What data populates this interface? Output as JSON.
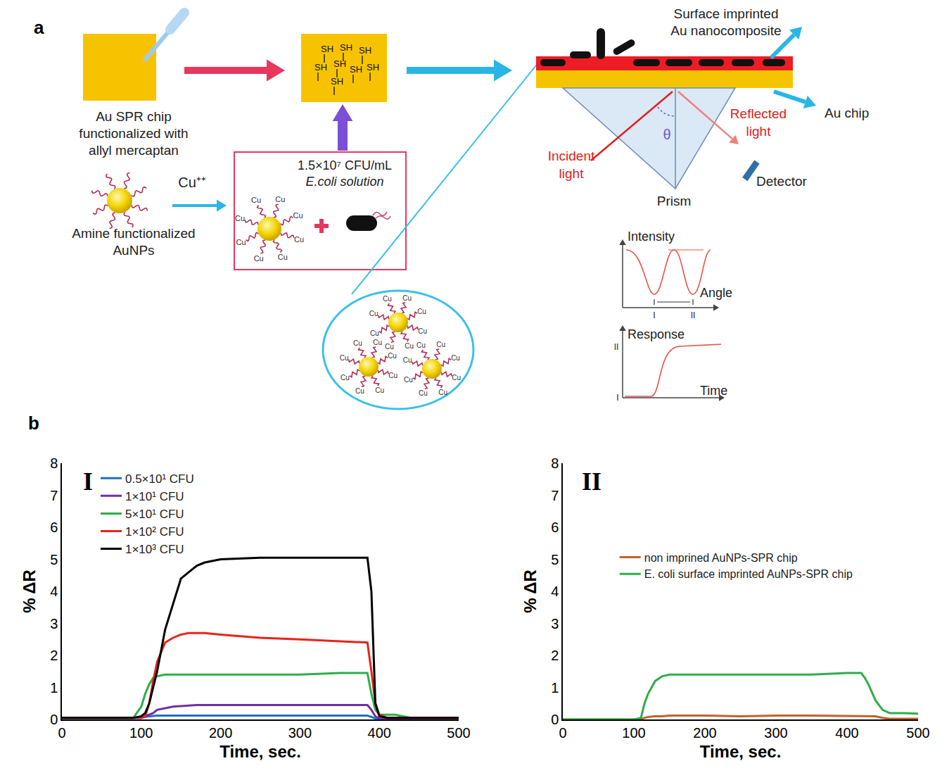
{
  "panel_a": {
    "label": "a",
    "chip_label": [
      "Au SPR chip",
      "functionalized with",
      "allyl mercaptan"
    ],
    "thiol_group": "SH",
    "nanoparticle_label": [
      "Amine functionalized",
      "AuNPs"
    ],
    "copper_ion": "Cu⁺⁺",
    "copper": "Cu",
    "bacteria_solution": [
      "1.5×10⁷ CFU/mL",
      "E.coli solution"
    ],
    "sensor_labels": {
      "nanocomposite": [
        "Surface imprinted",
        "Au nanocomposite"
      ],
      "chip": "Au chip",
      "incident": [
        "Incident",
        "light"
      ],
      "reflected": [
        "Reflected",
        "light"
      ],
      "detector": "Detector",
      "prism": "Prism",
      "angle_symbol": "θ"
    },
    "inset_spectrum": {
      "y_label": "Intensity",
      "x_label": "Angle",
      "markers": [
        "I",
        "II"
      ]
    },
    "inset_sensorgram": {
      "y_label": "Response",
      "x_label": "Time",
      "markers": [
        "I",
        "II"
      ]
    }
  },
  "panel_b_label": "b",
  "chart_data": [
    {
      "type": "line",
      "annotations": [
        "I"
      ],
      "x_label": "Time, sec.",
      "y_label": "% ΔR",
      "xlim": [
        0,
        500
      ],
      "xticks": [
        0,
        100,
        200,
        300,
        400,
        500
      ],
      "ylim": [
        0,
        8
      ],
      "yticks": [
        0,
        1,
        2,
        3,
        4,
        5,
        6,
        7,
        8
      ],
      "grid": false,
      "legend": "upper left",
      "x": [
        0,
        50,
        90,
        100,
        105,
        110,
        115,
        120,
        130,
        140,
        150,
        160,
        170,
        180,
        200,
        250,
        300,
        350,
        385,
        390,
        395,
        400,
        410,
        420,
        440,
        460,
        500
      ],
      "series": [
        {
          "name": "0.5×10¹ CFU",
          "color": "#1f6fc5",
          "values": [
            0.05,
            0.05,
            0.05,
            0.05,
            0.08,
            0.1,
            0.11,
            0.12,
            0.12,
            0.12,
            0.12,
            0.12,
            0.12,
            0.12,
            0.12,
            0.12,
            0.12,
            0.12,
            0.12,
            0.08,
            0.03,
            0.02,
            0.02,
            0.02,
            0.02,
            0.02,
            0.02
          ]
        },
        {
          "name": "1×10¹ CFU",
          "color": "#7030a0",
          "values": [
            0.05,
            0.05,
            0.05,
            0.05,
            0.1,
            0.15,
            0.2,
            0.3,
            0.35,
            0.4,
            0.42,
            0.44,
            0.45,
            0.45,
            0.45,
            0.45,
            0.44,
            0.44,
            0.45,
            0.3,
            0.1,
            0.02,
            0.02,
            0.02,
            0.02,
            0.02,
            0.02
          ]
        },
        {
          "name": "5×10¹ CFU",
          "color": "#2eae4a",
          "values": [
            0.05,
            0.05,
            0.05,
            0.4,
            0.8,
            1.1,
            1.3,
            1.35,
            1.4,
            1.4,
            1.4,
            1.4,
            1.4,
            1.4,
            1.4,
            1.4,
            1.4,
            1.45,
            1.45,
            0.8,
            0.3,
            0.15,
            0.15,
            0.15,
            0.05,
            0.05,
            0.05
          ]
        },
        {
          "name": "1×10² CFU",
          "color": "#e8231c",
          "values": [
            0.05,
            0.05,
            0.05,
            0.05,
            0.1,
            0.5,
            1.2,
            1.8,
            2.4,
            2.55,
            2.65,
            2.7,
            2.7,
            2.7,
            2.65,
            2.55,
            2.5,
            2.45,
            2.4,
            1.5,
            0.5,
            0.15,
            0.05,
            0.05,
            0.05,
            0.05,
            0.05
          ]
        },
        {
          "name": "1×10³ CFU",
          "color": "#000000",
          "values": [
            0.05,
            0.05,
            0.05,
            0.1,
            0.2,
            0.5,
            1.0,
            1.5,
            2.8,
            3.6,
            4.4,
            4.6,
            4.8,
            4.9,
            5.0,
            5.05,
            5.05,
            5.05,
            5.05,
            4.0,
            0.5,
            0.1,
            0.05,
            0.05,
            0.05,
            0.05,
            0.05
          ]
        }
      ]
    },
    {
      "type": "line",
      "annotations": [
        "II"
      ],
      "x_label": "Time, sec.",
      "y_label": "% ΔR",
      "xlim": [
        0,
        500
      ],
      "xticks": [
        0,
        100,
        200,
        300,
        400,
        500
      ],
      "ylim": [
        0,
        8
      ],
      "yticks": [
        0,
        1,
        2,
        3,
        4,
        5,
        6,
        7,
        8
      ],
      "grid": false,
      "legend": "center left",
      "x": [
        0,
        50,
        100,
        110,
        115,
        120,
        130,
        140,
        150,
        200,
        250,
        300,
        350,
        400,
        420,
        425,
        430,
        440,
        450,
        460,
        480,
        500
      ],
      "series": [
        {
          "name": "non imprined AuNPs-SPR chip",
          "color": "#c0622b",
          "values": [
            0,
            0,
            0,
            0.02,
            0.05,
            0.08,
            0.1,
            0.1,
            0.12,
            0.12,
            0.1,
            0.12,
            0.12,
            0.1,
            0.1,
            0.1,
            0.1,
            0.1,
            0.05,
            0.02,
            0.02,
            0.02
          ]
        },
        {
          "name": "E. coli surface imprinted AuNPs-SPR chip",
          "color": "#2eae4a",
          "values": [
            0,
            0,
            0,
            0.05,
            0.5,
            0.8,
            1.2,
            1.35,
            1.4,
            1.4,
            1.4,
            1.4,
            1.4,
            1.45,
            1.45,
            1.3,
            1.1,
            0.6,
            0.3,
            0.2,
            0.2,
            0.18
          ]
        }
      ]
    }
  ]
}
